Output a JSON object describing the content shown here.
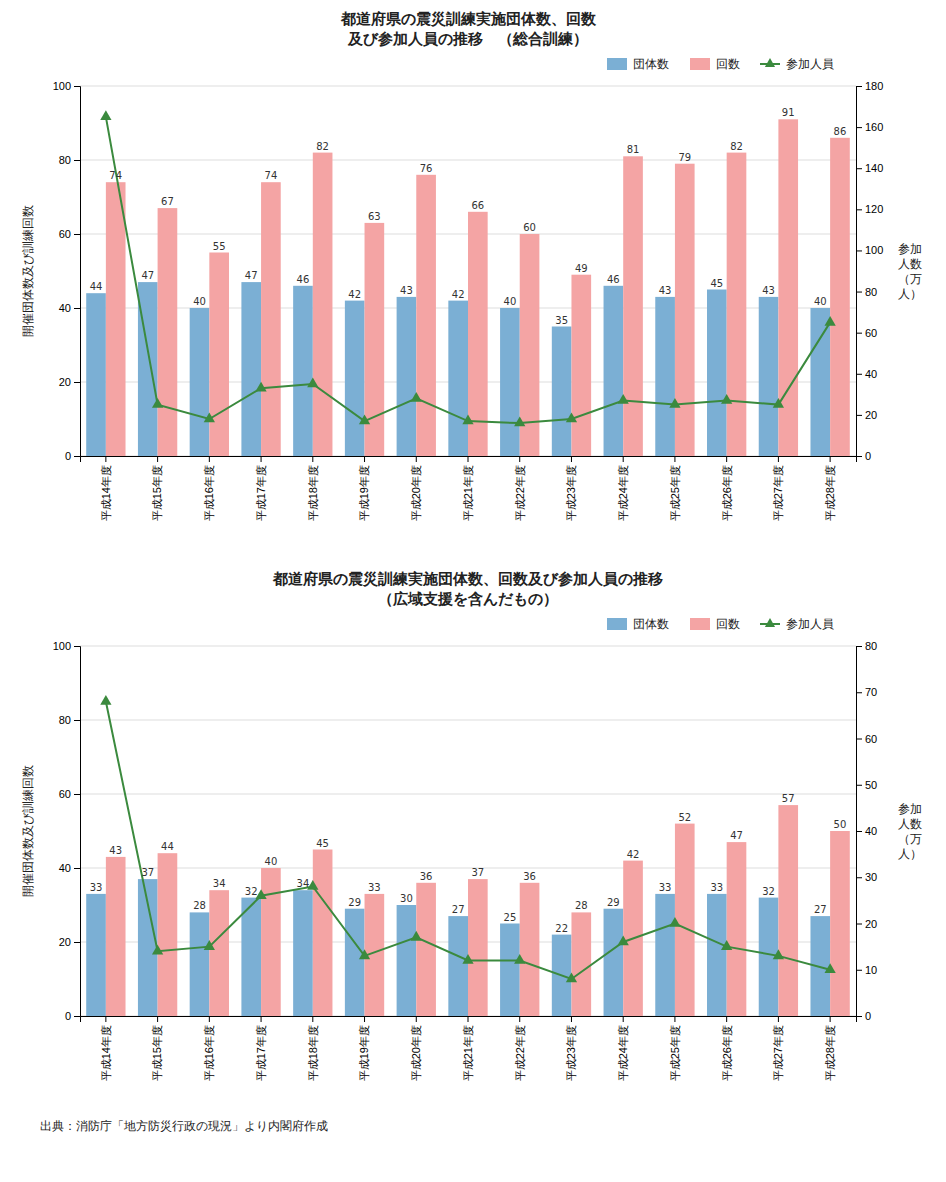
{
  "chart_data": [
    {
      "type": "bar",
      "title": "都道府県の震災訓練実施団体数、回数\n及び参加人員の推移　（総合訓練）",
      "ylabel": "開催団体数及び訓練回数",
      "y2label": "参加\n人数\n（万\n人）",
      "categories": [
        "平成14年度",
        "平成15年度",
        "平成16年度",
        "平成17年度",
        "平成18年度",
        "平成19年度",
        "平成20年度",
        "平成21年度",
        "平成22年度",
        "平成23年度",
        "平成24年度",
        "平成25年度",
        "平成26年度",
        "平成27年度",
        "平成28年度"
      ],
      "series": [
        {
          "name": "団体数",
          "type": "bar",
          "color": "#7BAFD4",
          "data_labels": true,
          "values": [
            44,
            47,
            40,
            47,
            46,
            42,
            43,
            42,
            40,
            35,
            46,
            43,
            45,
            43,
            40
          ]
        },
        {
          "name": "回数",
          "type": "bar",
          "color": "#F4A4A4",
          "data_labels": true,
          "values": [
            74,
            67,
            55,
            74,
            82,
            63,
            76,
            66,
            60,
            49,
            81,
            79,
            82,
            91,
            86
          ]
        },
        {
          "name": "参加人員",
          "type": "line",
          "axis": "y2",
          "color": "#3B8A3E",
          "marker": "triangle",
          "values": [
            165,
            25,
            18,
            33,
            35,
            17,
            28,
            17,
            16,
            18,
            27,
            25,
            27,
            25,
            65
          ]
        }
      ],
      "ylim": [
        0,
        100
      ],
      "yticks": [
        0,
        20,
        40,
        60,
        80,
        100
      ],
      "y2lim": [
        0,
        180
      ],
      "y2ticks": [
        0,
        20,
        40,
        60,
        80,
        100,
        120,
        140,
        160,
        180
      ],
      "grid": true,
      "legend": "upper right"
    },
    {
      "type": "bar",
      "title": "都道府県の震災訓練実施団体数、回数及び参加人員の推移\n（広域支援を含んだもの）",
      "ylabel": "開催団体数及び訓練回数",
      "y2label": "参加\n人数\n（万\n人）",
      "categories": [
        "平成14年度",
        "平成15年度",
        "平成16年度",
        "平成17年度",
        "平成18年度",
        "平成19年度",
        "平成20年度",
        "平成21年度",
        "平成22年度",
        "平成23年度",
        "平成24年度",
        "平成25年度",
        "平成26年度",
        "平成27年度",
        "平成28年度"
      ],
      "series": [
        {
          "name": "団体数",
          "type": "bar",
          "color": "#7BAFD4",
          "data_labels": true,
          "values": [
            33,
            37,
            28,
            32,
            34,
            29,
            30,
            27,
            25,
            22,
            29,
            33,
            33,
            32,
            27
          ]
        },
        {
          "name": "回数",
          "type": "bar",
          "color": "#F4A4A4",
          "data_labels": true,
          "values": [
            43,
            44,
            34,
            40,
            45,
            33,
            36,
            37,
            36,
            28,
            42,
            52,
            47,
            57,
            50
          ]
        },
        {
          "name": "参加人員",
          "type": "line",
          "axis": "y2",
          "color": "#3B8A3E",
          "marker": "triangle",
          "values": [
            68,
            14,
            15,
            26,
            28,
            13,
            17,
            12,
            12,
            8,
            16,
            20,
            15,
            13,
            10
          ]
        }
      ],
      "ylim": [
        0,
        100
      ],
      "yticks": [
        0,
        20,
        40,
        60,
        80,
        100
      ],
      "y2lim": [
        0,
        80
      ],
      "y2ticks": [
        0,
        10,
        20,
        30,
        40,
        50,
        60,
        70,
        80
      ],
      "grid": true,
      "legend": "upper right",
      "annotations": [
        "出典：消防庁「地方防災行政の現況」より内閣府作成"
      ]
    }
  ]
}
